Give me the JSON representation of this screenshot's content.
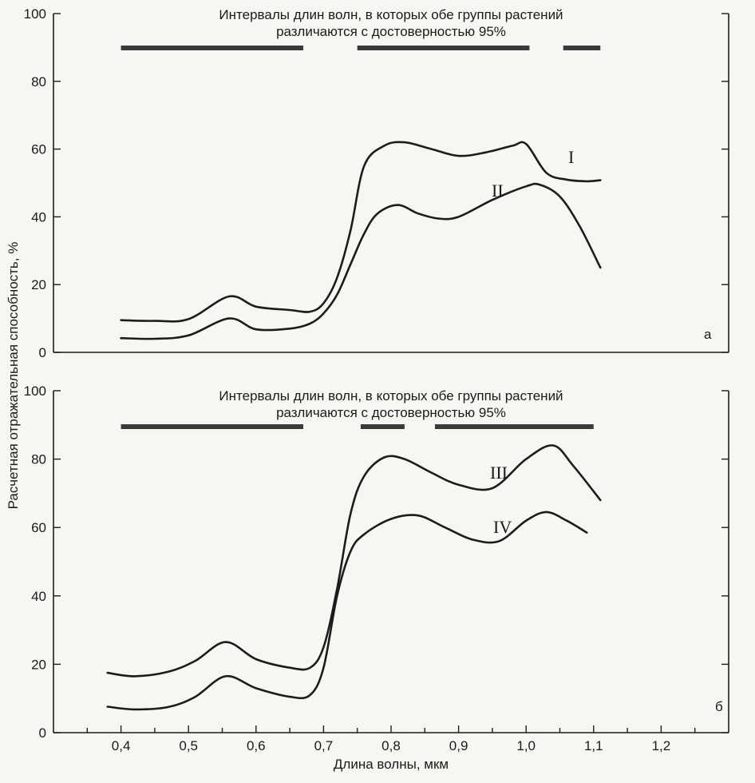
{
  "chart_data": [
    {
      "type": "line",
      "panel": "а",
      "ylim": [
        0,
        100
      ],
      "yticks": [
        "0",
        "20",
        "40",
        "60",
        "80",
        "100"
      ],
      "xlim": [
        0.3,
        1.3
      ],
      "annotation": "Интервалы длин волн, в которых обе группы растений различаются с достоверностью 95%",
      "intervals": [
        [
          0.4,
          0.67
        ],
        [
          0.75,
          1.005
        ],
        [
          1.055,
          1.11
        ]
      ],
      "series": [
        {
          "name": "I",
          "x": [
            0.4,
            0.45,
            0.5,
            0.56,
            0.6,
            0.65,
            0.68,
            0.7,
            0.72,
            0.74,
            0.76,
            0.79,
            0.82,
            0.86,
            0.9,
            0.94,
            0.98,
            1.0,
            1.03,
            1.06,
            1.09,
            1.11
          ],
          "values": [
            9.5,
            9.3,
            9.8,
            16.5,
            13.5,
            12.5,
            12,
            14.5,
            22,
            36,
            55,
            61,
            62,
            60,
            58,
            59,
            61,
            61.5,
            53,
            51,
            50.5,
            50.8
          ]
        },
        {
          "name": "II",
          "x": [
            0.4,
            0.45,
            0.5,
            0.56,
            0.6,
            0.65,
            0.68,
            0.7,
            0.72,
            0.74,
            0.76,
            0.78,
            0.81,
            0.84,
            0.87,
            0.9,
            0.95,
            1.0,
            1.02,
            1.05,
            1.08,
            1.11
          ],
          "values": [
            4.2,
            4,
            5,
            10,
            6.8,
            7,
            8.5,
            11.5,
            17,
            26,
            35,
            41,
            43.5,
            41,
            39.5,
            40,
            45,
            49,
            49.5,
            46,
            37,
            25
          ]
        }
      ]
    },
    {
      "type": "line",
      "panel": "б",
      "ylim": [
        0,
        100
      ],
      "yticks": [
        "0",
        "20",
        "40",
        "60",
        "80",
        "100"
      ],
      "xlim": [
        0.3,
        1.3
      ],
      "xticks": [
        "0,4",
        "0,5",
        "0,6",
        "0,7",
        "0,8",
        "0,9",
        "1,0",
        "1,1",
        "1,2"
      ],
      "xtick_values": [
        0.4,
        0.5,
        0.6,
        0.7,
        0.8,
        0.9,
        1.0,
        1.1,
        1.2
      ],
      "annotation": "Интервалы длин волн, в которых обе группы растений различаются с достоверностью 95%",
      "intervals": [
        [
          0.4,
          0.67
        ],
        [
          0.755,
          0.82
        ],
        [
          0.865,
          1.1
        ]
      ],
      "series": [
        {
          "name": "III",
          "x": [
            0.38,
            0.42,
            0.47,
            0.51,
            0.555,
            0.6,
            0.65,
            0.68,
            0.7,
            0.72,
            0.74,
            0.76,
            0.79,
            0.82,
            0.86,
            0.9,
            0.95,
            1.0,
            1.04,
            1.07,
            1.11
          ],
          "values": [
            17.5,
            16.5,
            17.8,
            21,
            26.5,
            21.5,
            19,
            19,
            25,
            42,
            64,
            75,
            80.5,
            80,
            76,
            72.5,
            71.5,
            80,
            84,
            78,
            68
          ]
        },
        {
          "name": "IV",
          "x": [
            0.38,
            0.42,
            0.47,
            0.51,
            0.555,
            0.6,
            0.65,
            0.68,
            0.7,
            0.72,
            0.74,
            0.76,
            0.8,
            0.84,
            0.88,
            0.92,
            0.96,
            1.0,
            1.03,
            1.06,
            1.09
          ],
          "values": [
            7.6,
            6.8,
            7.5,
            10.5,
            16.5,
            13,
            10.5,
            11,
            19,
            40,
            53,
            58,
            62.5,
            63.5,
            60,
            56.5,
            56,
            62,
            64.5,
            62,
            58.5
          ]
        }
      ]
    }
  ],
  "xlabel": "Длина волны, мкм",
  "ylabel": "Расчетная отражательная способность, %",
  "colors": {
    "ink": "#1c1c1c",
    "bar": "#3a3a3a",
    "paper": "#f7f6f3"
  }
}
